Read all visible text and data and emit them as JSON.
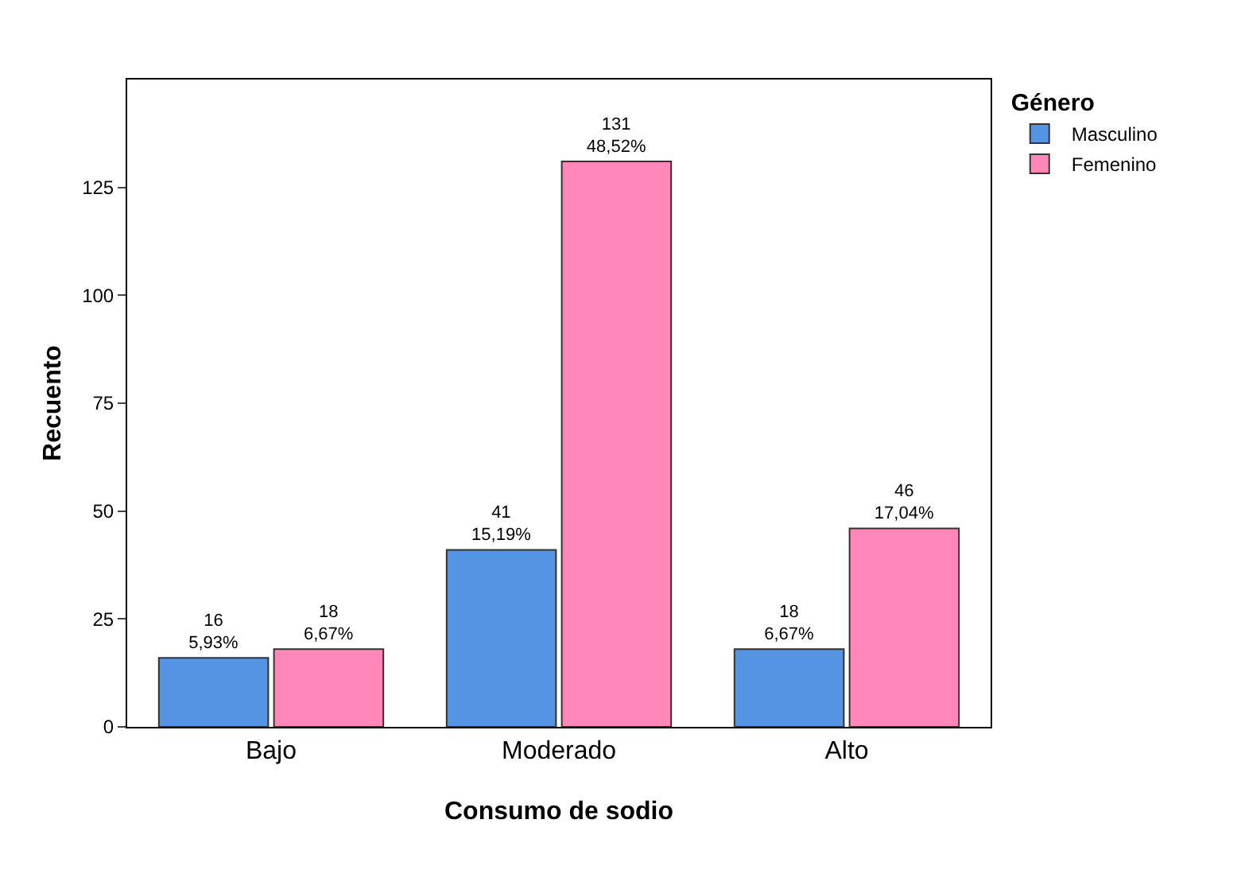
{
  "chart_data": {
    "type": "bar",
    "xlabel": "Consumo de sodio",
    "ylabel": "Recuento",
    "legend_title": "Género",
    "categories": [
      "Bajo",
      "Moderado",
      "Alto"
    ],
    "series": [
      {
        "name": "Masculino",
        "color": "#5594e2",
        "values": [
          16,
          41,
          18
        ],
        "value_labels": [
          "16\n5,93%",
          "41\n15,19%",
          "18\n6,67%"
        ]
      },
      {
        "name": "Femenino",
        "color": "#ff88b8",
        "values": [
          18,
          131,
          46
        ],
        "value_labels": [
          "18\n6,67%",
          "131\n48,52%",
          "46\n17,04%"
        ]
      }
    ],
    "ylim": [
      0,
      150
    ],
    "yticks": [
      0,
      25,
      50,
      75,
      100,
      125
    ],
    "grid": false,
    "legend": "top right"
  }
}
